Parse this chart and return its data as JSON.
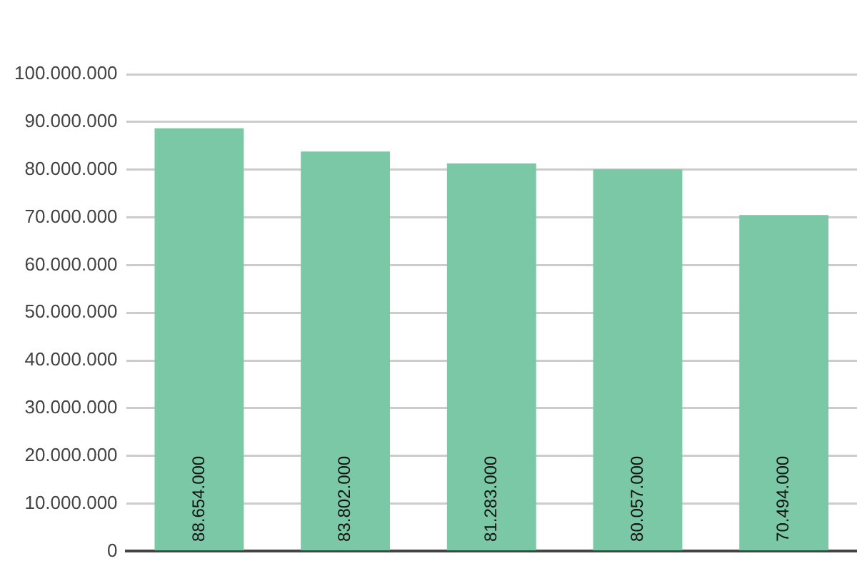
{
  "chart_data": {
    "type": "bar",
    "categories": [
      null,
      null,
      null,
      null,
      null
    ],
    "values": [
      88654000,
      83802000,
      81283000,
      80057000,
      70494000
    ],
    "value_labels": [
      "88.654.000",
      "83.802.000",
      "81.283.000",
      "80.057.000",
      "70.494.000"
    ],
    "color": "#7bc8a6",
    "ylim": [
      0,
      100000000
    ],
    "yticks": [
      {
        "value": 0,
        "label": "0"
      },
      {
        "value": 10000000,
        "label": "10.000.000"
      },
      {
        "value": 20000000,
        "label": "20.000.000"
      },
      {
        "value": 30000000,
        "label": "30.000.000"
      },
      {
        "value": 40000000,
        "label": "40.000.000"
      },
      {
        "value": 50000000,
        "label": "50.000.000"
      },
      {
        "value": 60000000,
        "label": "60.000.000"
      },
      {
        "value": 70000000,
        "label": "70.000.000"
      },
      {
        "value": 80000000,
        "label": "80.000.000"
      },
      {
        "value": 90000000,
        "label": "90.000.000"
      },
      {
        "value": 100000000,
        "label": "100.000.000"
      }
    ],
    "grid": "y"
  }
}
